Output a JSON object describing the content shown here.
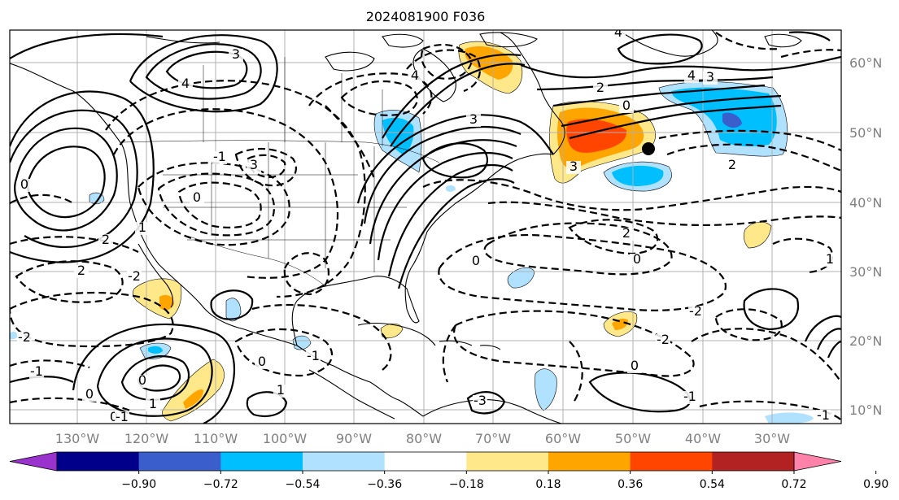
{
  "title": "2024081900 F036",
  "lon_labels": [
    "130°W",
    "120°W",
    "110°W",
    "100°W",
    "90°W",
    "80°W",
    "70°W",
    "60°W",
    "50°W",
    "40°W",
    "30°W"
  ],
  "lat_labels": [
    "60°N",
    "50°N",
    "40°N",
    "30°N",
    "20°N",
    "10°N"
  ],
  "colorbar": {
    "ticks": [
      "−0.90",
      "−0.72",
      "−0.54",
      "−0.36",
      "−0.18",
      "0.18",
      "0.36",
      "0.54",
      "0.72",
      "0.90"
    ],
    "colors": [
      "#9a32cd",
      "#00008b",
      "#3a5fcd",
      "#00bfff",
      "#b0e2ff",
      "#ffffff",
      "#ffe88a",
      "#ffa500",
      "#ff4500",
      "#b22222",
      "#ff82ab"
    ]
  },
  "contour_labels": [
    "4",
    "3",
    "4",
    "4",
    "2",
    "3",
    "0",
    "0",
    "2",
    "2",
    "0",
    "1",
    "0",
    "3",
    "2",
    "0",
    "-2",
    "0",
    "-2",
    "-1",
    "-1",
    "0",
    "1",
    "-2",
    "-1",
    "0",
    "1",
    "0",
    "-1",
    "0",
    "-1",
    "4",
    "3",
    "2",
    "3",
    "1",
    "-3",
    "-2",
    "-1"
  ],
  "marker": "black-dot"
}
